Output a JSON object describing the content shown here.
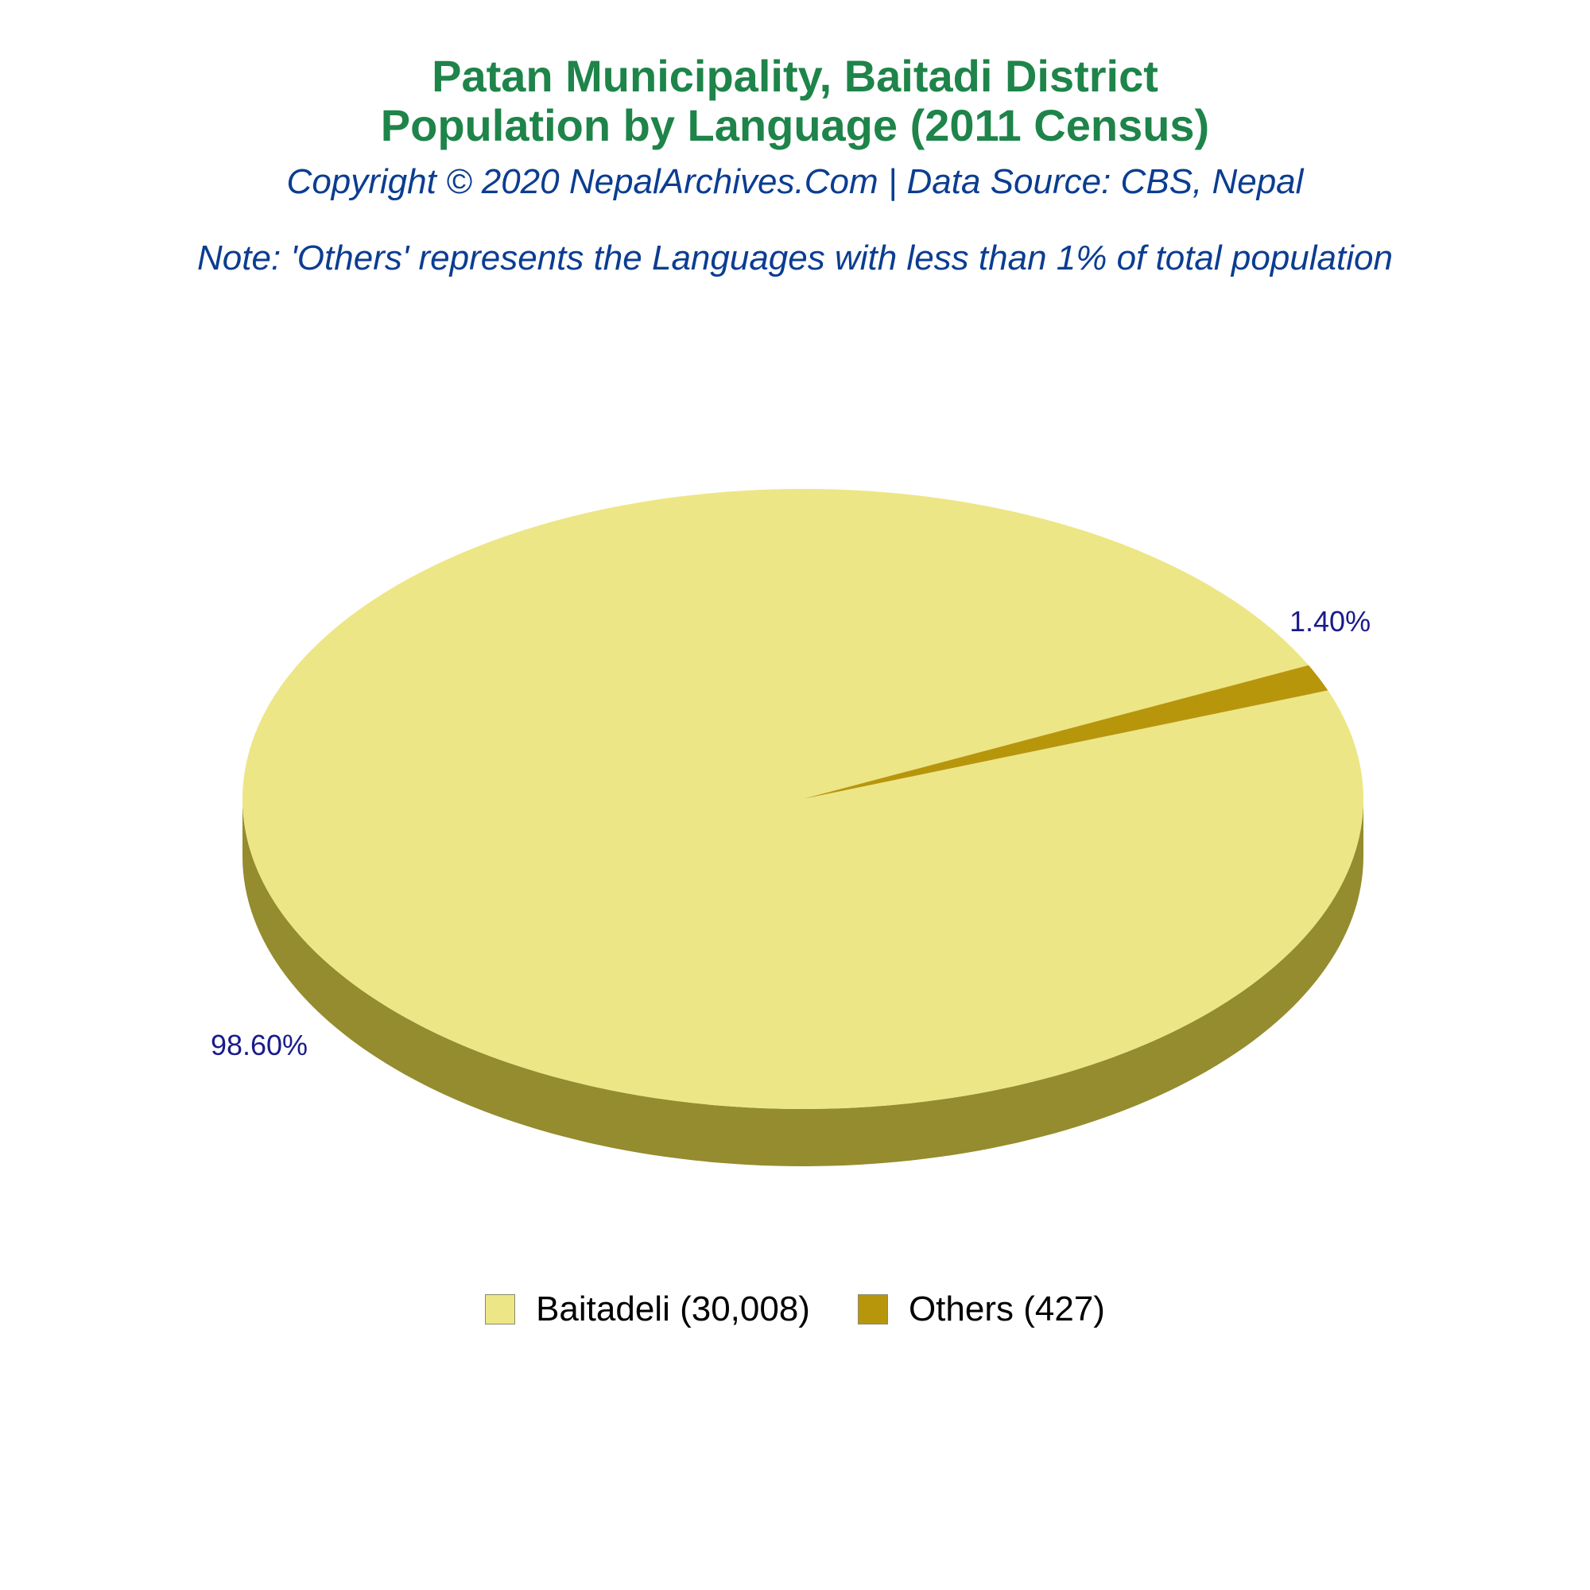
{
  "chart_data": {
    "type": "pie",
    "title": "Patan Municipality, Baitadi District",
    "title_line2": "Population by Language (2011 Census)",
    "subtitle": "Copyright © 2020 NepalArchives.Com | Data Source: CBS, Nepal",
    "note": "Note: 'Others' represents the Languages with less than 1% of total population",
    "legend_position": "bottom",
    "style": "3d",
    "slices": [
      {
        "category": "Baitadeli",
        "value": 30008,
        "percent": 98.6,
        "label": "98.60%",
        "legend": "Baitadeli (30,008)",
        "color": "#ede686",
        "side_color": "#948c2e"
      },
      {
        "category": "Others",
        "value": 427,
        "percent": 1.4,
        "label": "1.40%",
        "legend": "Others (427)",
        "color": "#b8960c",
        "side_color": "#8a7009"
      }
    ]
  }
}
